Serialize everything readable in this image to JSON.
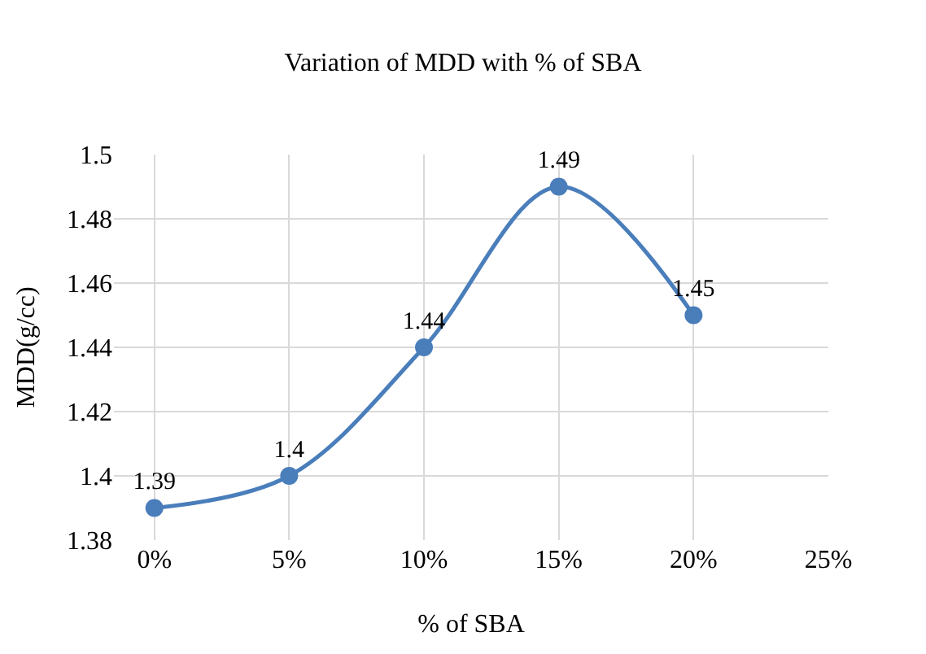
{
  "chart_data": {
    "type": "line",
    "title": "Variation of MDD with % of SBA",
    "xlabel": "% of SBA",
    "ylabel": "MDD(g/cc)",
    "x": [
      0,
      5,
      10,
      15,
      20
    ],
    "series": [
      {
        "color": "#4a7ebb",
        "values": [
          1.39,
          1.4,
          1.44,
          1.49,
          1.45
        ]
      }
    ],
    "xlim": [
      -1.5,
      25
    ],
    "xticks": [
      {
        "value": 0,
        "label": "0%"
      },
      {
        "value": 5,
        "label": "5%"
      },
      {
        "value": 10,
        "label": "10%"
      },
      {
        "value": 15,
        "label": "15%"
      },
      {
        "value": 20,
        "label": "20%"
      },
      {
        "value": 25,
        "label": "25%"
      }
    ],
    "ylim": [
      1.38,
      1.5
    ],
    "yticks": [
      1.38,
      1.4,
      1.42,
      1.44,
      1.46,
      1.48,
      1.5
    ],
    "grid": true,
    "marker": "circle",
    "line_style": "solid",
    "data_labels": true
  }
}
